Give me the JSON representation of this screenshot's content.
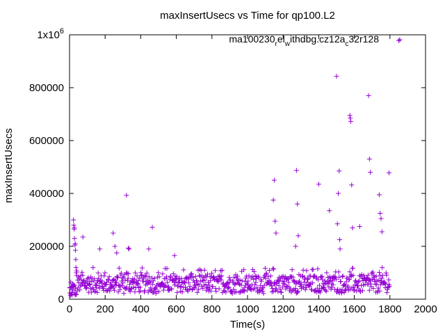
{
  "chart_data": {
    "type": "scatter",
    "title": "maxInsertUsecs vs Time for qp100.L2",
    "xlabel": "Time(s)",
    "ylabel": "maxInsertUsecs",
    "xlim": [
      0,
      2000
    ],
    "ylim": [
      0,
      1000000
    ],
    "x_ticks": [
      0,
      200,
      400,
      600,
      800,
      1000,
      1200,
      1400,
      1600,
      1800,
      2000
    ],
    "x_tick_labels": [
      "0",
      "200",
      "400",
      "600",
      "800",
      "1000",
      "1200",
      "1400",
      "1600",
      "1800",
      "2000"
    ],
    "y_ticks": [
      0,
      200000,
      400000,
      600000,
      800000,
      1000000
    ],
    "y_tick_labels": [
      "0",
      "200000",
      "400000",
      "600000",
      "800000",
      "1x10^6"
    ],
    "y_top_label_base": "1x10",
    "y_top_label_exp": "6",
    "marker_color": "#9400d3",
    "marker": "+",
    "legend_position": "top-right",
    "legend": {
      "part1": "ma100230",
      "sub1": "r",
      "part2": "el",
      "sub2": "w",
      "part3": "ithdbg.cz12a",
      "sub3": "c",
      "part4": "32r128"
    },
    "series": [
      {
        "name": "ma100230_rel_withdbg.cz12a_c32r128",
        "outliers": [
          [
            5,
            15000
          ],
          [
            10,
            20000
          ],
          [
            15,
            25000
          ],
          [
            18,
            35000
          ],
          [
            22,
            300000
          ],
          [
            24,
            280000
          ],
          [
            26,
            265000
          ],
          [
            27,
            270000
          ],
          [
            28,
            230000
          ],
          [
            30,
            205000
          ],
          [
            32,
            210000
          ],
          [
            33,
            185000
          ],
          [
            35,
            150000
          ],
          [
            36,
            120000
          ],
          [
            38,
            100000
          ],
          [
            40,
            90000
          ],
          [
            75,
            235000
          ],
          [
            170,
            190000
          ],
          [
            245,
            250000
          ],
          [
            255,
            200000
          ],
          [
            265,
            175000
          ],
          [
            320,
            393000
          ],
          [
            330,
            193000
          ],
          [
            335,
            190000
          ],
          [
            445,
            190000
          ],
          [
            465,
            272000
          ],
          [
            590,
            165000
          ],
          [
            1145,
            375000
          ],
          [
            1150,
            450000
          ],
          [
            1155,
            295000
          ],
          [
            1160,
            250000
          ],
          [
            1270,
            200000
          ],
          [
            1275,
            487000
          ],
          [
            1280,
            360000
          ],
          [
            1285,
            240000
          ],
          [
            1400,
            435000
          ],
          [
            1460,
            335000
          ],
          [
            1500,
            843000
          ],
          [
            1505,
            285000
          ],
          [
            1510,
            400000
          ],
          [
            1515,
            485000
          ],
          [
            1518,
            225000
          ],
          [
            1520,
            190000
          ],
          [
            1575,
            695000
          ],
          [
            1577,
            685000
          ],
          [
            1580,
            672000
          ],
          [
            1585,
            432000
          ],
          [
            1590,
            270000
          ],
          [
            1630,
            275000
          ],
          [
            1680,
            770000
          ],
          [
            1685,
            530000
          ],
          [
            1690,
            480000
          ],
          [
            1740,
            395000
          ],
          [
            1745,
            325000
          ],
          [
            1750,
            305000
          ],
          [
            1755,
            255000
          ],
          [
            1795,
            478000
          ],
          [
            1850,
            978000
          ]
        ]
      }
    ]
  }
}
